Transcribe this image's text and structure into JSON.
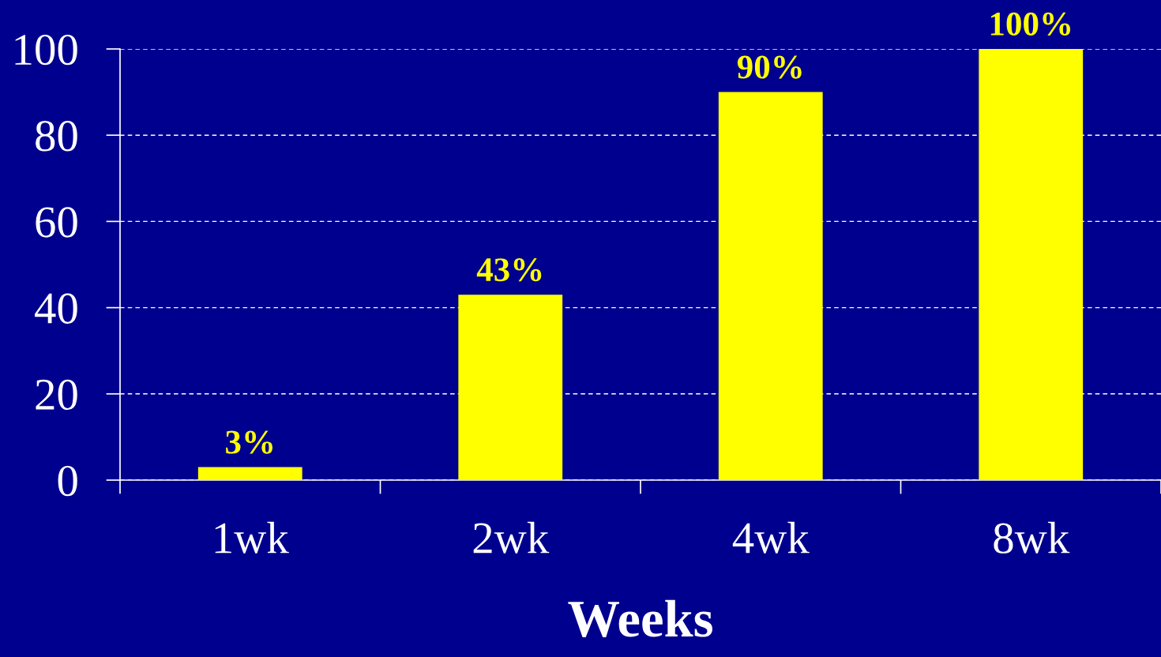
{
  "chart_data": {
    "type": "bar",
    "xlabel": "Weeks",
    "categories": [
      "1wk",
      "2wk",
      "4wk",
      "8wk"
    ],
    "values": [
      3,
      43,
      90,
      100
    ],
    "color": "#ffff00",
    "value_labels": [
      "3%",
      "43%",
      "90%",
      "100%"
    ],
    "ylim": [
      0,
      100
    ],
    "yticks": [
      0,
      20,
      40,
      60,
      80,
      100
    ],
    "grid": "y"
  }
}
